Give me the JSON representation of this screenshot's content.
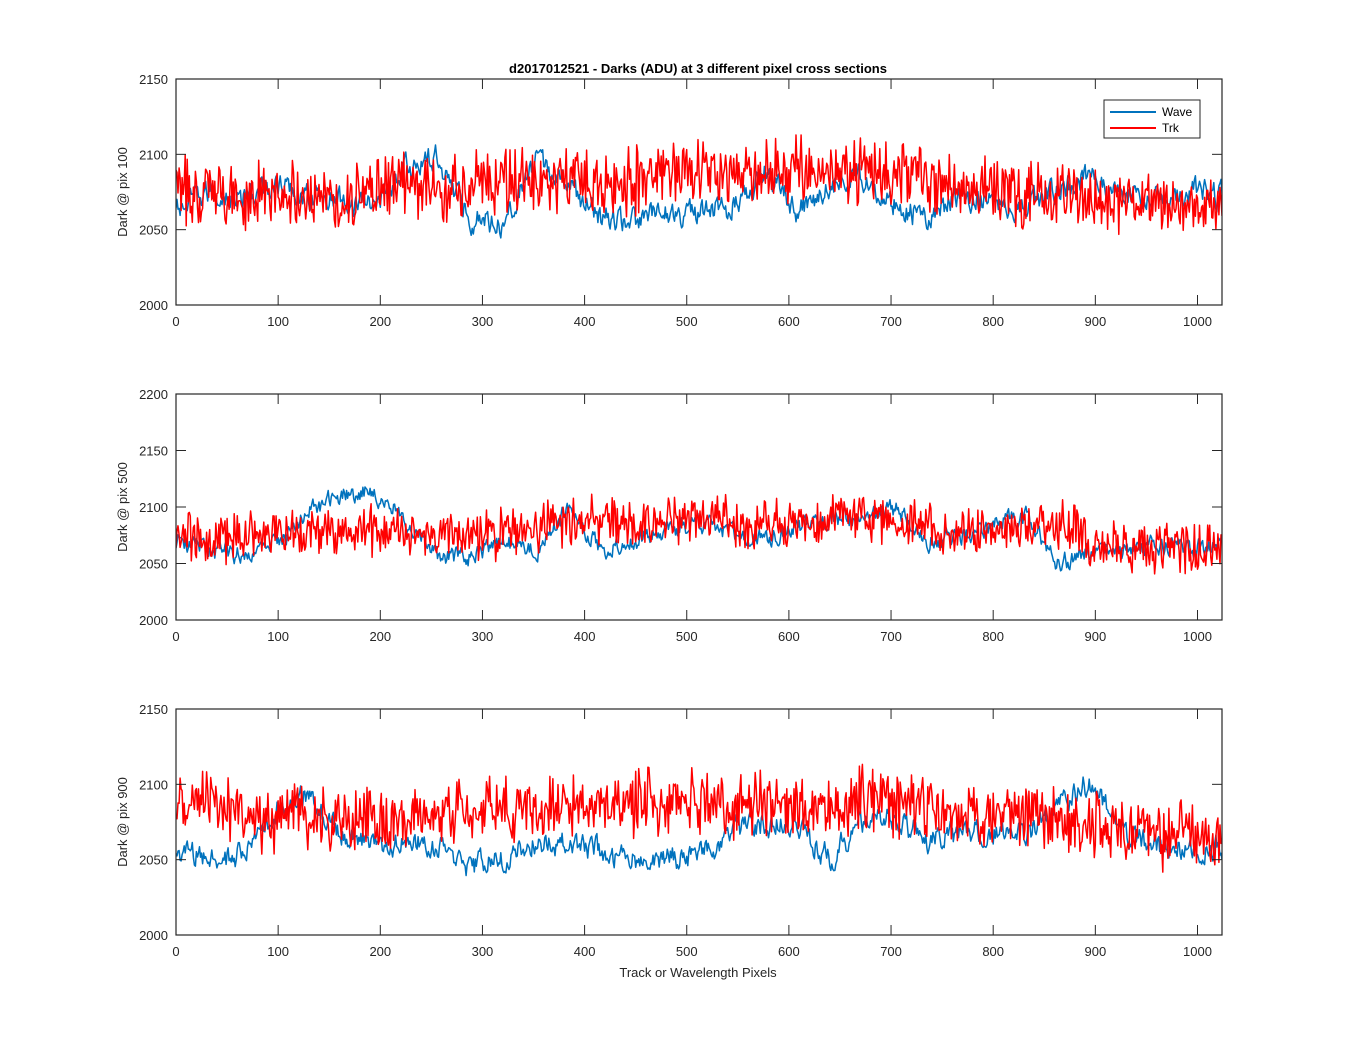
{
  "chart_data": {
    "type": "line",
    "title": "d2017012521 - Darks (ADU) at 3 different pixel cross sections",
    "xlabel": "Track or Wavelength Pixels",
    "legend": {
      "position": "top-right",
      "entries": [
        "Wave",
        "Trk"
      ]
    },
    "colors": {
      "Wave": "#0072BD",
      "Trk": "#FF0000",
      "axis": "#262626"
    },
    "grid": false,
    "panels": [
      {
        "ylabel": "Dark @ pix 100",
        "xlim": [
          0,
          1024
        ],
        "ylim": [
          2000,
          2150
        ],
        "xticks": [
          0,
          100,
          200,
          300,
          400,
          500,
          600,
          700,
          800,
          900,
          1000
        ],
        "yticks": [
          2000,
          2050,
          2100,
          2150
        ],
        "series": [
          {
            "name": "Wave",
            "color": "#0072BD",
            "x": [
              0,
              32,
              64,
              96,
              128,
              160,
              192,
              224,
              256,
              288,
              320,
              352,
              384,
              416,
              448,
              480,
              512,
              544,
              576,
              608,
              640,
              672,
              704,
              736,
              768,
              800,
              832,
              864,
              896,
              928,
              960,
              992,
              1024
            ],
            "y": [
              2062,
              2075,
              2070,
              2080,
              2072,
              2070,
              2067,
              2090,
              2098,
              2058,
              2055,
              2095,
              2080,
              2058,
              2055,
              2062,
              2060,
              2065,
              2090,
              2063,
              2080,
              2086,
              2067,
              2057,
              2072,
              2070,
              2066,
              2077,
              2087,
              2072,
              2070,
              2076,
              2072
            ]
          },
          {
            "name": "Trk",
            "color": "#FF0000",
            "x": [
              0,
              32,
              64,
              96,
              128,
              160,
              192,
              224,
              256,
              288,
              320,
              352,
              384,
              416,
              448,
              480,
              512,
              544,
              576,
              608,
              640,
              672,
              704,
              736,
              768,
              800,
              832,
              864,
              896,
              928,
              960,
              992,
              1024
            ],
            "y": [
              2075,
              2078,
              2072,
              2076,
              2074,
              2070,
              2076,
              2080,
              2077,
              2078,
              2080,
              2082,
              2081,
              2080,
              2083,
              2085,
              2088,
              2086,
              2088,
              2092,
              2090,
              2088,
              2086,
              2082,
              2079,
              2076,
              2073,
              2072,
              2070,
              2069,
              2068,
              2068,
              2070
            ]
          }
        ]
      },
      {
        "ylabel": "Dark @ pix 500",
        "xlim": [
          0,
          1024
        ],
        "ylim": [
          2000,
          2200
        ],
        "xticks": [
          0,
          100,
          200,
          300,
          400,
          500,
          600,
          700,
          800,
          900,
          1000
        ],
        "yticks": [
          2000,
          2050,
          2100,
          2150,
          2200
        ],
        "series": [
          {
            "name": "Wave",
            "color": "#0072BD",
            "x": [
              0,
              32,
              64,
              96,
              128,
              160,
              192,
              224,
              256,
              288,
              320,
              352,
              384,
              416,
              448,
              480,
              512,
              544,
              576,
              608,
              640,
              672,
              704,
              736,
              768,
              800,
              832,
              864,
              896,
              928,
              960,
              992,
              1024
            ],
            "y": [
              2070,
              2062,
              2058,
              2066,
              2095,
              2110,
              2115,
              2090,
              2055,
              2055,
              2070,
              2060,
              2098,
              2063,
              2068,
              2080,
              2086,
              2076,
              2072,
              2083,
              2090,
              2090,
              2098,
              2070,
              2073,
              2085,
              2095,
              2050,
              2060,
              2062,
              2065,
              2062,
              2070
            ]
          },
          {
            "name": "Trk",
            "color": "#FF0000",
            "x": [
              0,
              32,
              64,
              96,
              128,
              160,
              192,
              224,
              256,
              288,
              320,
              352,
              384,
              416,
              448,
              480,
              512,
              544,
              576,
              608,
              640,
              672,
              704,
              736,
              768,
              800,
              832,
              864,
              896,
              928,
              960,
              992,
              1024
            ],
            "y": [
              2075,
              2072,
              2074,
              2076,
              2078,
              2080,
              2078,
              2077,
              2076,
              2074,
              2076,
              2080,
              2090,
              2088,
              2086,
              2088,
              2090,
              2088,
              2086,
              2085,
              2090,
              2092,
              2086,
              2080,
              2078,
              2080,
              2082,
              2086,
              2072,
              2066,
              2064,
              2064,
              2066
            ]
          }
        ]
      },
      {
        "ylabel": "Dark @ pix 900",
        "xlim": [
          0,
          1024
        ],
        "ylim": [
          2000,
          2150
        ],
        "xticks": [
          0,
          100,
          200,
          300,
          400,
          500,
          600,
          700,
          800,
          900,
          1000
        ],
        "yticks": [
          2000,
          2050,
          2100,
          2150
        ],
        "series": [
          {
            "name": "Wave",
            "color": "#0072BD",
            "x": [
              0,
              32,
              64,
              96,
              128,
              160,
              192,
              224,
              256,
              288,
              320,
              352,
              384,
              416,
              448,
              480,
              512,
              544,
              576,
              608,
              640,
              672,
              704,
              736,
              768,
              800,
              832,
              864,
              896,
              928,
              960,
              992,
              1024
            ],
            "y": [
              2055,
              2050,
              2052,
              2080,
              2092,
              2068,
              2062,
              2060,
              2060,
              2045,
              2050,
              2060,
              2060,
              2056,
              2050,
              2052,
              2052,
              2068,
              2075,
              2070,
              2050,
              2075,
              2078,
              2063,
              2066,
              2068,
              2064,
              2085,
              2102,
              2066,
              2058,
              2058,
              2060
            ]
          },
          {
            "name": "Trk",
            "color": "#FF0000",
            "x": [
              0,
              32,
              64,
              96,
              128,
              160,
              192,
              224,
              256,
              288,
              320,
              352,
              384,
              416,
              448,
              480,
              512,
              544,
              576,
              608,
              640,
              672,
              704,
              736,
              768,
              800,
              832,
              864,
              896,
              928,
              960,
              992,
              1024
            ],
            "y": [
              2082,
              2090,
              2080,
              2076,
              2078,
              2076,
              2078,
              2075,
              2080,
              2082,
              2084,
              2085,
              2086,
              2084,
              2086,
              2090,
              2088,
              2086,
              2088,
              2086,
              2084,
              2090,
              2088,
              2082,
              2080,
              2080,
              2082,
              2078,
              2075,
              2070,
              2066,
              2066,
              2062
            ]
          }
        ]
      }
    ]
  }
}
